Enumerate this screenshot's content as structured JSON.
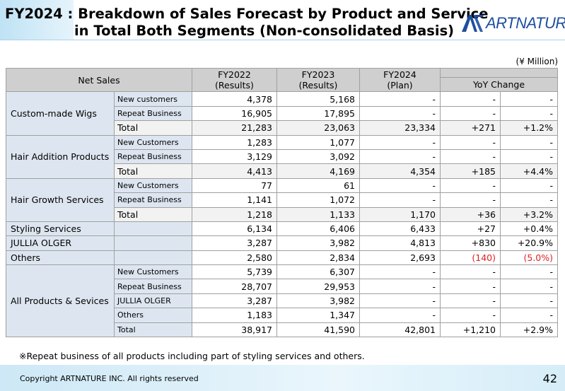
{
  "header": {
    "title_line1": "FY2024 : Breakdown of Sales Forecast by Product and Service",
    "title_line2": "in Total Both Segments (Non-consolidated Basis)",
    "logo_text": "ARTNATURE"
  },
  "unit": "(¥ Million)",
  "table": {
    "head": {
      "net_sales": "Net Sales",
      "fy2022_label": "FY2022",
      "fy2022_sub": "(Results)",
      "fy2023_label": "FY2023",
      "fy2023_sub": "(Results)",
      "fy2024_label": "FY2024",
      "fy2024_sub": "(Plan)",
      "yoy": "YoY Change"
    },
    "custom": {
      "label": "Custom-made Wigs",
      "rows": [
        {
          "name": "New customers",
          "fy22": "4,378",
          "fy23": "5,168",
          "fy24": "-",
          "chg": "-",
          "pct": "-"
        },
        {
          "name": "Repeat Business",
          "fy22": "16,905",
          "fy23": "17,895",
          "fy24": "-",
          "chg": "-",
          "pct": "-"
        },
        {
          "name": "Total",
          "fy22": "21,283",
          "fy23": "23,063",
          "fy24": "23,334",
          "chg": "+271",
          "pct": "+1.2%"
        }
      ]
    },
    "addition": {
      "label": "Hair Addition Products",
      "rows": [
        {
          "name": "New Customers",
          "fy22": "1,283",
          "fy23": "1,077",
          "fy24": "-",
          "chg": "-",
          "pct": "-"
        },
        {
          "name": "Repeat Business",
          "fy22": "3,129",
          "fy23": "3,092",
          "fy24": "-",
          "chg": "-",
          "pct": "-"
        },
        {
          "name": "Total",
          "fy22": "4,413",
          "fy23": "4,169",
          "fy24": "4,354",
          "chg": "+185",
          "pct": "+4.4%"
        }
      ]
    },
    "growth": {
      "label": "Hair Growth Services",
      "rows": [
        {
          "name": "New Customers",
          "fy22": "77",
          "fy23": "61",
          "fy24": "-",
          "chg": "-",
          "pct": "-"
        },
        {
          "name": "Repeat Business",
          "fy22": "1,141",
          "fy23": "1,072",
          "fy24": "-",
          "chg": "-",
          "pct": "-"
        },
        {
          "name": "Total",
          "fy22": "1,218",
          "fy23": "1,133",
          "fy24": "1,170",
          "chg": "+36",
          "pct": "+3.2%"
        }
      ]
    },
    "singles": [
      {
        "label": "Styling Services",
        "fy22": "6,134",
        "fy23": "6,406",
        "fy24": "6,433",
        "chg": "+27",
        "pct": "+0.4%"
      },
      {
        "label": "JULLIA OLGER",
        "fy22": "3,287",
        "fy23": "3,982",
        "fy24": "4,813",
        "chg": "+830",
        "pct": "+20.9%"
      },
      {
        "label": "Others",
        "fy22": "2,580",
        "fy23": "2,834",
        "fy24": "2,693",
        "chg": "(140)",
        "pct": "(5.0%)"
      }
    ],
    "all": {
      "label": "All Products & Sevices",
      "rows": [
        {
          "name": "New Customers",
          "fy22": "5,739",
          "fy23": "6,307",
          "fy24": "-",
          "chg": "-",
          "pct": "-"
        },
        {
          "name": "Repeat Business",
          "fy22": "28,707",
          "fy23": "29,953",
          "fy24": "-",
          "chg": "-",
          "pct": "-"
        },
        {
          "name": "JULLIA OLGER",
          "fy22": "3,287",
          "fy23": "3,982",
          "fy24": "-",
          "chg": "-",
          "pct": "-"
        },
        {
          "name": "Others",
          "fy22": "1,183",
          "fy23": "1,347",
          "fy24": "-",
          "chg": "-",
          "pct": "-"
        },
        {
          "name": "Total",
          "fy22": "38,917",
          "fy23": "41,590",
          "fy24": "42,801",
          "chg": "+1,210",
          "pct": "+2.9%"
        }
      ]
    }
  },
  "note": "※Repeat business of all products including part of styling services and others.",
  "footer": {
    "copyright": "Copyright ARTNATURE INC. All rights reserved",
    "page": "42"
  },
  "colors": {
    "negative": "#e02020",
    "label_bg": "#dde6f0",
    "header_bg": "#cfcfcf",
    "brand": "#1d4f9e"
  }
}
